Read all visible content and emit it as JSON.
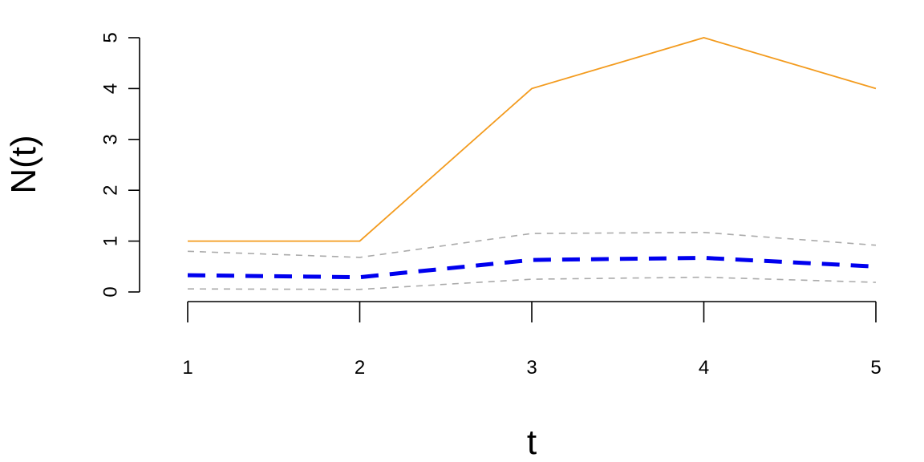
{
  "chart_data": {
    "type": "line",
    "title": "",
    "xlabel": "t",
    "ylabel": "N(t)",
    "x": [
      1,
      2,
      3,
      4,
      5
    ],
    "xlim": [
      1,
      5
    ],
    "ylim": [
      0,
      5
    ],
    "x_ticks": [
      "1",
      "2",
      "3",
      "4",
      "5"
    ],
    "y_ticks": [
      "0",
      "1",
      "2",
      "3",
      "4",
      "5"
    ],
    "grid": false,
    "legend": "none",
    "series": [
      {
        "values": [
          1,
          1,
          4,
          5,
          4
        ],
        "color": "#F39B1E",
        "style": "solid"
      },
      {
        "values": [
          0.8,
          0.68,
          1.15,
          1.17,
          0.92
        ],
        "color": "#AAAAAA",
        "style": "dashed-thin"
      },
      {
        "values": [
          0.33,
          0.29,
          0.63,
          0.67,
          0.5
        ],
        "color": "#0000EE",
        "style": "dashed-thick"
      },
      {
        "values": [
          0.06,
          0.05,
          0.25,
          0.29,
          0.19
        ],
        "color": "#AAAAAA",
        "style": "dashed-thin"
      }
    ]
  }
}
